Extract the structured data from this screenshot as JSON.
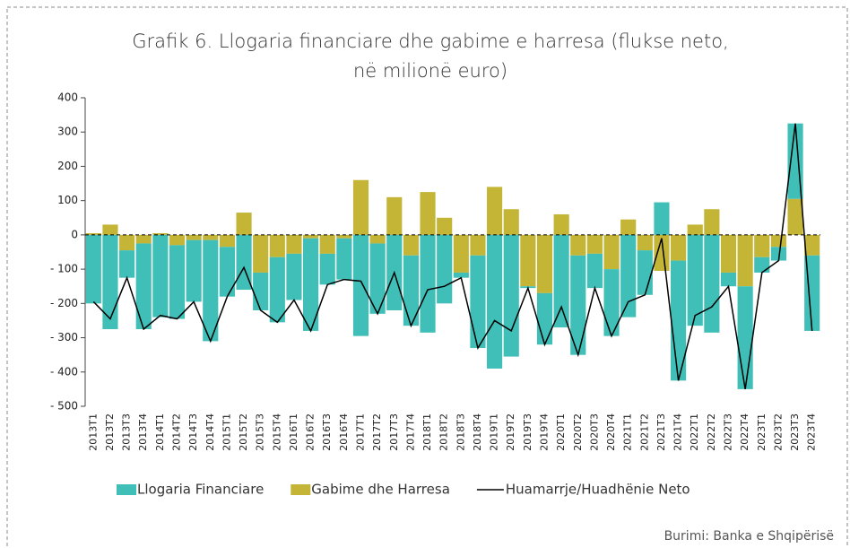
{
  "chart_data": {
    "type": "bar",
    "stacked": true,
    "title": "Grafik 6.  Llogaria financiare dhe gabime e harresa (flukse neto,",
    "subtitle": "në milionë euro)",
    "source": "Burimi: Banka e Shqipërisë",
    "categories": [
      "2013T1",
      "2013T2",
      "2013T3",
      "2013T4",
      "2014T1",
      "2014T2",
      "2014T3",
      "2014T4",
      "2015T1",
      "2015T2",
      "2015T3",
      "2015T4",
      "2016T1",
      "2016T2",
      "2016T3",
      "2016T4",
      "2017T1",
      "2017T2",
      "2017T3",
      "2017T4",
      "2018T1",
      "2018T2",
      "2018T3",
      "2018T4",
      "2019T1",
      "2019T2",
      "2019T3",
      "2019T4",
      "2020T1",
      "2020T2",
      "2020T3",
      "2020T4",
      "2021T1",
      "2021T2",
      "2021T3",
      "2021T4",
      "2022T1",
      "2022T2",
      "2022T3",
      "2022T4",
      "2023T1",
      "2023T2",
      "2023T3",
      "2023T4"
    ],
    "series": [
      {
        "name": "Llogaria Financiare",
        "type": "bar",
        "color": "#3fbfb7",
        "values": [
          -200,
          -275,
          -80,
          -250,
          -240,
          -215,
          -180,
          -295,
          -145,
          -160,
          -110,
          -190,
          -135,
          -270,
          -90,
          -120,
          -295,
          -205,
          -220,
          -205,
          -285,
          -200,
          -15,
          -270,
          -390,
          -355,
          -5,
          -150,
          -270,
          -290,
          -100,
          -195,
          -240,
          -130,
          95,
          -350,
          -265,
          -285,
          -40,
          -300,
          -45,
          -40,
          220,
          -220
        ]
      },
      {
        "name": "Gabime dhe Harresa",
        "type": "bar",
        "color": "#c5b536",
        "values": [
          5,
          30,
          -45,
          -25,
          5,
          -30,
          -15,
          -15,
          -35,
          65,
          -110,
          -65,
          -55,
          -10,
          -55,
          -10,
          160,
          -25,
          110,
          -60,
          125,
          50,
          -110,
          -60,
          140,
          75,
          -150,
          -170,
          60,
          -60,
          -55,
          -100,
          45,
          -45,
          -105,
          -75,
          30,
          75,
          -110,
          -150,
          -65,
          -35,
          105,
          -60
        ]
      },
      {
        "name": "Huamarrje/Huadhënie Neto",
        "type": "line",
        "color": "#000000",
        "values": [
          -195,
          -245,
          -125,
          -275,
          -235,
          -245,
          -195,
          -310,
          -180,
          -95,
          -220,
          -255,
          -190,
          -280,
          -145,
          -130,
          -135,
          -230,
          -110,
          -265,
          -160,
          -150,
          -125,
          -330,
          -250,
          -280,
          -155,
          -320,
          -210,
          -350,
          -155,
          -295,
          -195,
          -175,
          -10,
          -425,
          -235,
          -210,
          -150,
          -450,
          -110,
          -75,
          325,
          -280
        ]
      }
    ],
    "ylim": [
      -500,
      400
    ],
    "yticks": [
      {
        "value": -500,
        "label": "- 500"
      },
      {
        "value": -400,
        "label": "- 400"
      },
      {
        "value": -300,
        "label": "- 300"
      },
      {
        "value": -200,
        "label": "- 200"
      },
      {
        "value": -100,
        "label": "- 100"
      },
      0,
      100,
      200,
      300,
      400
    ]
  }
}
